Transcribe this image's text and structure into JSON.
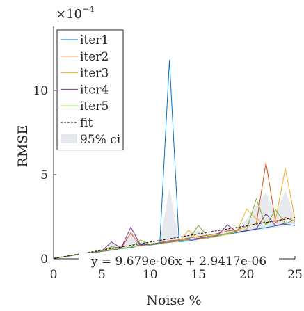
{
  "chart_data": {
    "type": "line",
    "title": "",
    "xlabel": "Noise %",
    "ylabel": "RMSE",
    "y_exponent_label": "×10",
    "y_exponent_power": "−4",
    "xlim": [
      0,
      25
    ],
    "ylim": [
      0,
      0.00138
    ],
    "x_ticks": [
      0,
      5,
      10,
      15,
      20,
      25
    ],
    "x_tick_labels": [
      "0",
      "5",
      "10",
      "15",
      "20",
      "25"
    ],
    "y_ticks": [
      0,
      0.0005,
      0.001
    ],
    "y_tick_labels": [
      "0",
      "5",
      "10"
    ],
    "grid": false,
    "legend_position": "top-left",
    "x": [
      0,
      1,
      2,
      3,
      4,
      5,
      6,
      7,
      8,
      9,
      10,
      11,
      12,
      13,
      14,
      15,
      16,
      17,
      18,
      19,
      20,
      21,
      22,
      23,
      24,
      25
    ],
    "series": [
      {
        "name": "iter1",
        "color": "#0072BD",
        "values": [
          3e-06,
          1.1e-05,
          2e-05,
          2.9e-05,
          3.5e-05,
          4.4e-05,
          5.2e-05,
          6.1e-05,
          6.5e-05,
          8.5e-05,
          8.2e-05,
          9e-05,
          0.00118,
          0.000102,
          0.000107,
          0.000117,
          0.000126,
          0.000136,
          0.000146,
          0.000156,
          0.000166,
          0.000176,
          0.000186,
          0.000196,
          0.000205,
          0.000198
        ]
      },
      {
        "name": "iter2",
        "color": "#D95319",
        "values": [
          3e-06,
          1.1e-05,
          2.1e-05,
          3e-05,
          3.8e-05,
          4.6e-05,
          5.6e-05,
          6.4e-05,
          0.000154,
          7.7e-05,
          8.8e-05,
          9.6e-05,
          0.000108,
          0.000112,
          0.000124,
          0.000132,
          0.00014,
          0.000151,
          0.000166,
          0.000172,
          0.000194,
          0.00021,
          0.000572,
          0.000216,
          0.000246,
          0.000222
        ]
      },
      {
        "name": "iter3",
        "color": "#EDB120",
        "values": [
          3e-06,
          1.2e-05,
          2.2e-05,
          3.1e-05,
          3.8e-05,
          4.7e-05,
          5.5e-05,
          6.4e-05,
          7e-05,
          7.9e-05,
          8.6e-05,
          9.3e-05,
          9.9e-05,
          0.000104,
          0.00017,
          0.000116,
          0.000124,
          0.000134,
          0.000146,
          0.000164,
          0.000296,
          0.000236,
          0.00021,
          0.000232,
          0.000538,
          0.000236
        ]
      },
      {
        "name": "iter4",
        "color": "#7E2F8E",
        "values": [
          3e-06,
          1.1e-05,
          2.1e-05,
          3e-05,
          3.8e-05,
          4.7e-05,
          0.0001,
          6.4e-05,
          0.000188,
          8.1e-05,
          8.6e-05,
          9.4e-05,
          0.0001,
          0.000108,
          0.000114,
          0.000122,
          0.000132,
          0.00014,
          0.000202,
          0.000158,
          0.000168,
          0.000178,
          0.000268,
          0.000196,
          0.000212,
          0.000214
        ]
      },
      {
        "name": "iter5",
        "color": "#77AC30",
        "values": [
          3e-06,
          1.1e-05,
          2e-05,
          2.9e-05,
          3.7e-05,
          4.6e-05,
          7.2e-05,
          6.2e-05,
          6.8e-05,
          0.000112,
          8.5e-05,
          9.2e-05,
          9.8e-05,
          0.000106,
          0.000114,
          0.000198,
          0.000132,
          0.000142,
          0.00015,
          0.000168,
          0.000174,
          0.000356,
          0.000198,
          0.000292,
          0.000208,
          0.000232
        ]
      }
    ],
    "fit": {
      "name": "fit",
      "slope": 9.679e-06,
      "intercept": 2.9417e-06,
      "color": "#000000"
    },
    "ci": {
      "name": "95% ci",
      "color": "#d6dbe3",
      "upper": [
        5e-06,
        1.3e-05,
        2.4e-05,
        3.3e-05,
        4.2e-05,
        5.2e-05,
        9.2e-05,
        7.2e-05,
        0.000165,
        0.000102,
        9.2e-05,
        0.0001,
        0.00042,
        0.000112,
        0.000152,
        0.00017,
        0.000136,
        0.000146,
        0.000185,
        0.000172,
        0.000236,
        0.000316,
        0.000398,
        0.000262,
        0.000406,
        0.000244
      ],
      "lower": [
        1e-06,
        9e-06,
        1.8e-05,
        2.7e-05,
        3.4e-05,
        4.2e-05,
        4.6e-05,
        5.8e-05,
        6.2e-05,
        7.2e-05,
        7.8e-05,
        8.6e-05,
        9.2e-05,
        9.8e-05,
        0.000104,
        0.000112,
        0.00012,
        0.00013,
        0.00014,
        0.00015,
        0.000158,
        0.000168,
        0.000176,
        0.000186,
        0.000196,
        0.000196
      ]
    },
    "equation": "y = 9.679e-06x + 2.9417e-06"
  }
}
